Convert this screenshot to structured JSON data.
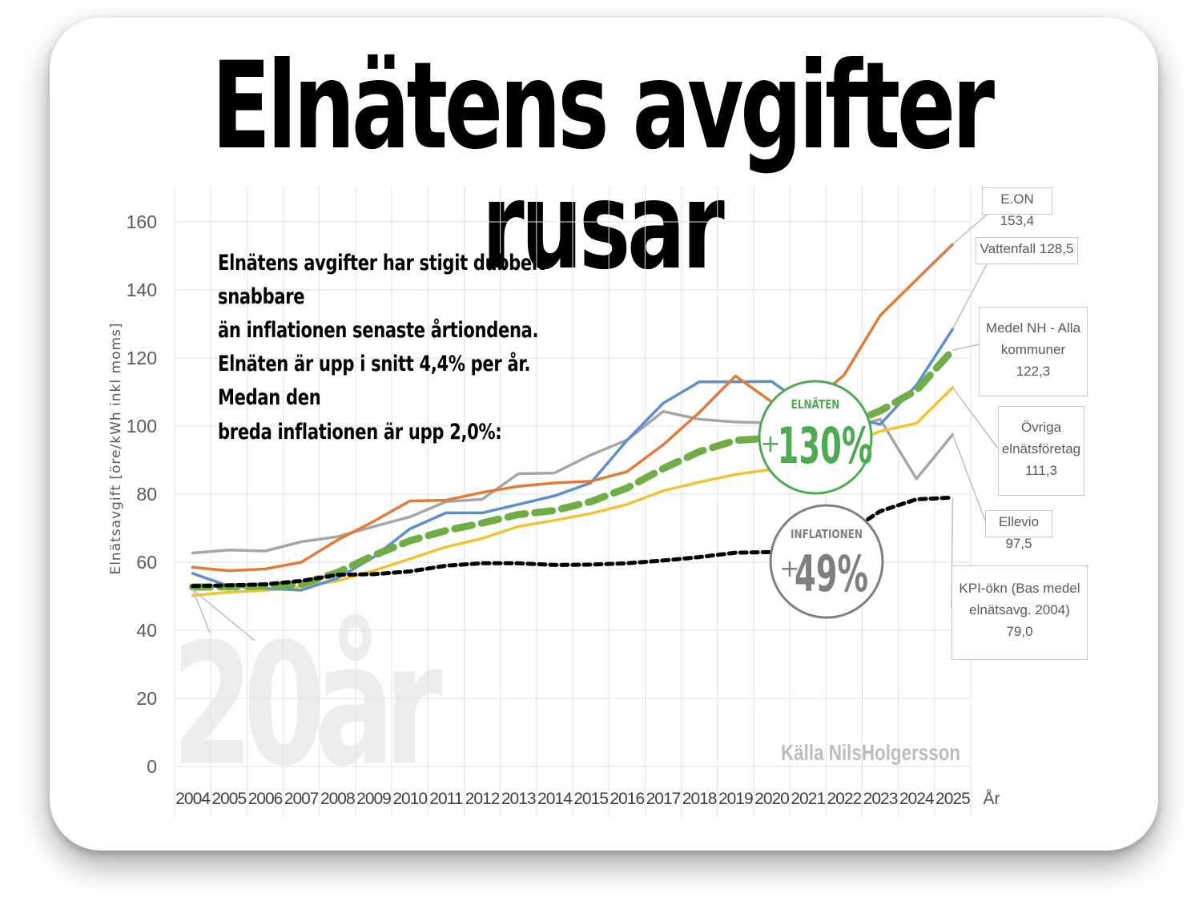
{
  "headline": "Elnätens avgifter rusar",
  "annotation_lines": [
    "Elnätens avgifter har stigit dubbelt snabbare",
    "än inflationen senaste årtiondena.",
    "Elnäten är upp i snitt 4,4% per år. Medan den",
    "breda inflationen är upp 2,0%:"
  ],
  "source": "Källa NilsHolgersson",
  "watermark": "20år",
  "badges": {
    "elnat": {
      "title": "ELNÄTEN",
      "plus": "+",
      "value": "130%"
    },
    "inflation": {
      "title": "INFLATIONEN",
      "plus": "+",
      "value": "49%"
    }
  },
  "colors": {
    "eon": "#e07b39",
    "vattenfall": "#5b8fcf",
    "medel": "#70ad47",
    "ovriga": "#f2c233",
    "ellevio": "#a6a6a6",
    "kpi": "#000000",
    "badge_green": "#4daa50",
    "badge_gray": "#7f7f7f"
  },
  "series_labels": {
    "eon": [
      "E.ON 153,4"
    ],
    "vattenfall": [
      "Vattenfall 128,5"
    ],
    "medel": [
      "Medel NH - Alla",
      "kommuner",
      "122,3"
    ],
    "ovriga": [
      "Övriga",
      "elnätsföretag",
      "111,3"
    ],
    "ellevio": [
      "Ellevio 97,5"
    ],
    "kpi": [
      "KPI-ökn (Bas medel",
      "elnätsavg. 2004)",
      "79,0"
    ]
  },
  "chart_data": {
    "type": "line",
    "ylabel": "Elnätsavgift [öre/kWh inkl moms]",
    "xlabel": "År",
    "ylim": [
      0,
      160
    ],
    "yticks": [
      "0",
      "20",
      "40",
      "60",
      "80",
      "100",
      "120",
      "140",
      "160"
    ],
    "grid": true,
    "categories": [
      "2004",
      "2005",
      "2006",
      "2007",
      "2008",
      "2009",
      "2010",
      "2011",
      "2012",
      "2013",
      "2014",
      "2015",
      "2016",
      "2017",
      "2018",
      "2019",
      "2020",
      "2021",
      "2022",
      "2023",
      "2024",
      "2025"
    ],
    "series": [
      {
        "key": "eon",
        "values": [
          58.5,
          57.5,
          58,
          60,
          66.5,
          72,
          78,
          78.2,
          80.5,
          82.3,
          83.3,
          83.8,
          86.6,
          94.5,
          104,
          114.7,
          107.1,
          106,
          115,
          132.5,
          143,
          153.4
        ]
      },
      {
        "key": "vattenfall",
        "values": [
          56.7,
          53,
          52.3,
          51.8,
          55.3,
          61.5,
          69.8,
          74.5,
          74.5,
          77,
          79.5,
          83.3,
          95.8,
          106.7,
          113,
          113,
          113.1,
          105.5,
          103,
          100.5,
          112,
          128.5
        ]
      },
      {
        "key": "ellevio",
        "values": [
          62.7,
          63.6,
          63.3,
          66,
          67.5,
          70.5,
          73.3,
          77.8,
          78.5,
          86,
          86.2,
          91.5,
          95.9,
          104.3,
          102,
          101.2,
          100.9,
          100,
          99,
          102,
          84.5,
          97.5
        ]
      },
      {
        "key": "ovriga",
        "values": [
          50.2,
          51.2,
          51.7,
          52.8,
          54.5,
          57.5,
          61,
          64.5,
          67,
          70.5,
          72.3,
          74.3,
          77,
          81,
          83.5,
          85.8,
          87.3,
          88.5,
          94,
          98.5,
          100.8,
          111.3
        ]
      },
      {
        "key": "medel",
        "values": [
          52.7,
          52.8,
          53,
          53.5,
          57,
          62,
          66.3,
          69.3,
          71.5,
          74,
          75.2,
          77.8,
          81.8,
          87.5,
          92.5,
          95.8,
          96.5,
          97,
          100,
          104.5,
          110.5,
          122.3
        ]
      },
      {
        "key": "kpi",
        "values": [
          53,
          53.2,
          53.5,
          54.5,
          56.3,
          56.5,
          57.3,
          59,
          59.7,
          59.7,
          59.2,
          59.3,
          59.7,
          60.5,
          61.5,
          62.8,
          63,
          64.5,
          68,
          75,
          78.5,
          79.0
        ]
      }
    ]
  }
}
